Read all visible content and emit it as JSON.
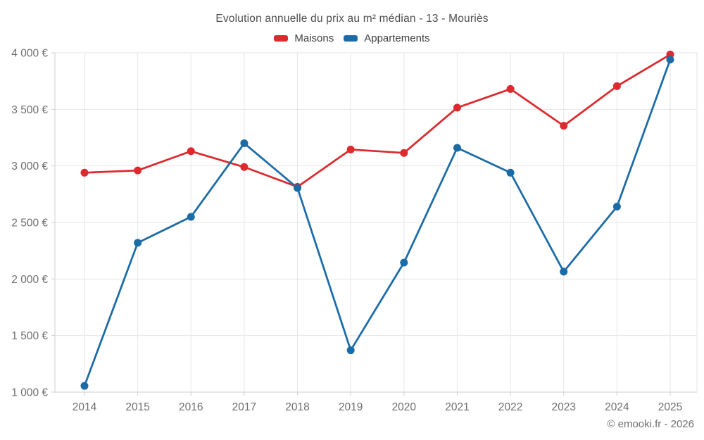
{
  "header": {
    "title": "Evolution annuelle du prix au m² médian - 13 - Mouriès"
  },
  "footer": {
    "credit": "© emooki.fr - 2026"
  },
  "colors": {
    "maisons": "#dc2a2e",
    "appartements": "#1b6ba6",
    "grid": "#e6e6e6",
    "axis": "#cfcfcf",
    "tick_text": "#6e6e6e"
  },
  "chart_data": {
    "type": "line",
    "title": "Evolution annuelle du prix au m² médian - 13 - Mouriès",
    "x": [
      "2014",
      "2015",
      "2016",
      "2017",
      "2018",
      "2019",
      "2020",
      "2021",
      "2022",
      "2023",
      "2024",
      "2025"
    ],
    "series": [
      {
        "name": "Maisons",
        "color": "#dc2a2e",
        "values": [
          2940,
          2960,
          3130,
          2990,
          2815,
          3145,
          3115,
          3515,
          3680,
          3355,
          3705,
          3985
        ]
      },
      {
        "name": "Appartements",
        "color": "#1b6ba6",
        "values": [
          1055,
          2320,
          2550,
          3200,
          2805,
          1370,
          2145,
          3160,
          2940,
          2065,
          2640,
          3940
        ]
      }
    ],
    "ylim": [
      1000,
      4000
    ],
    "yticks": [
      1000,
      1500,
      2000,
      2500,
      3000,
      3500,
      4000
    ],
    "ytick_labels": [
      "1 000 €",
      "1 500 €",
      "2 000 €",
      "2 500 €",
      "3 000 €",
      "3 500 €",
      "4 000 €"
    ],
    "xlabel": "",
    "ylabel": "",
    "grid": true,
    "legend_position": "top"
  }
}
